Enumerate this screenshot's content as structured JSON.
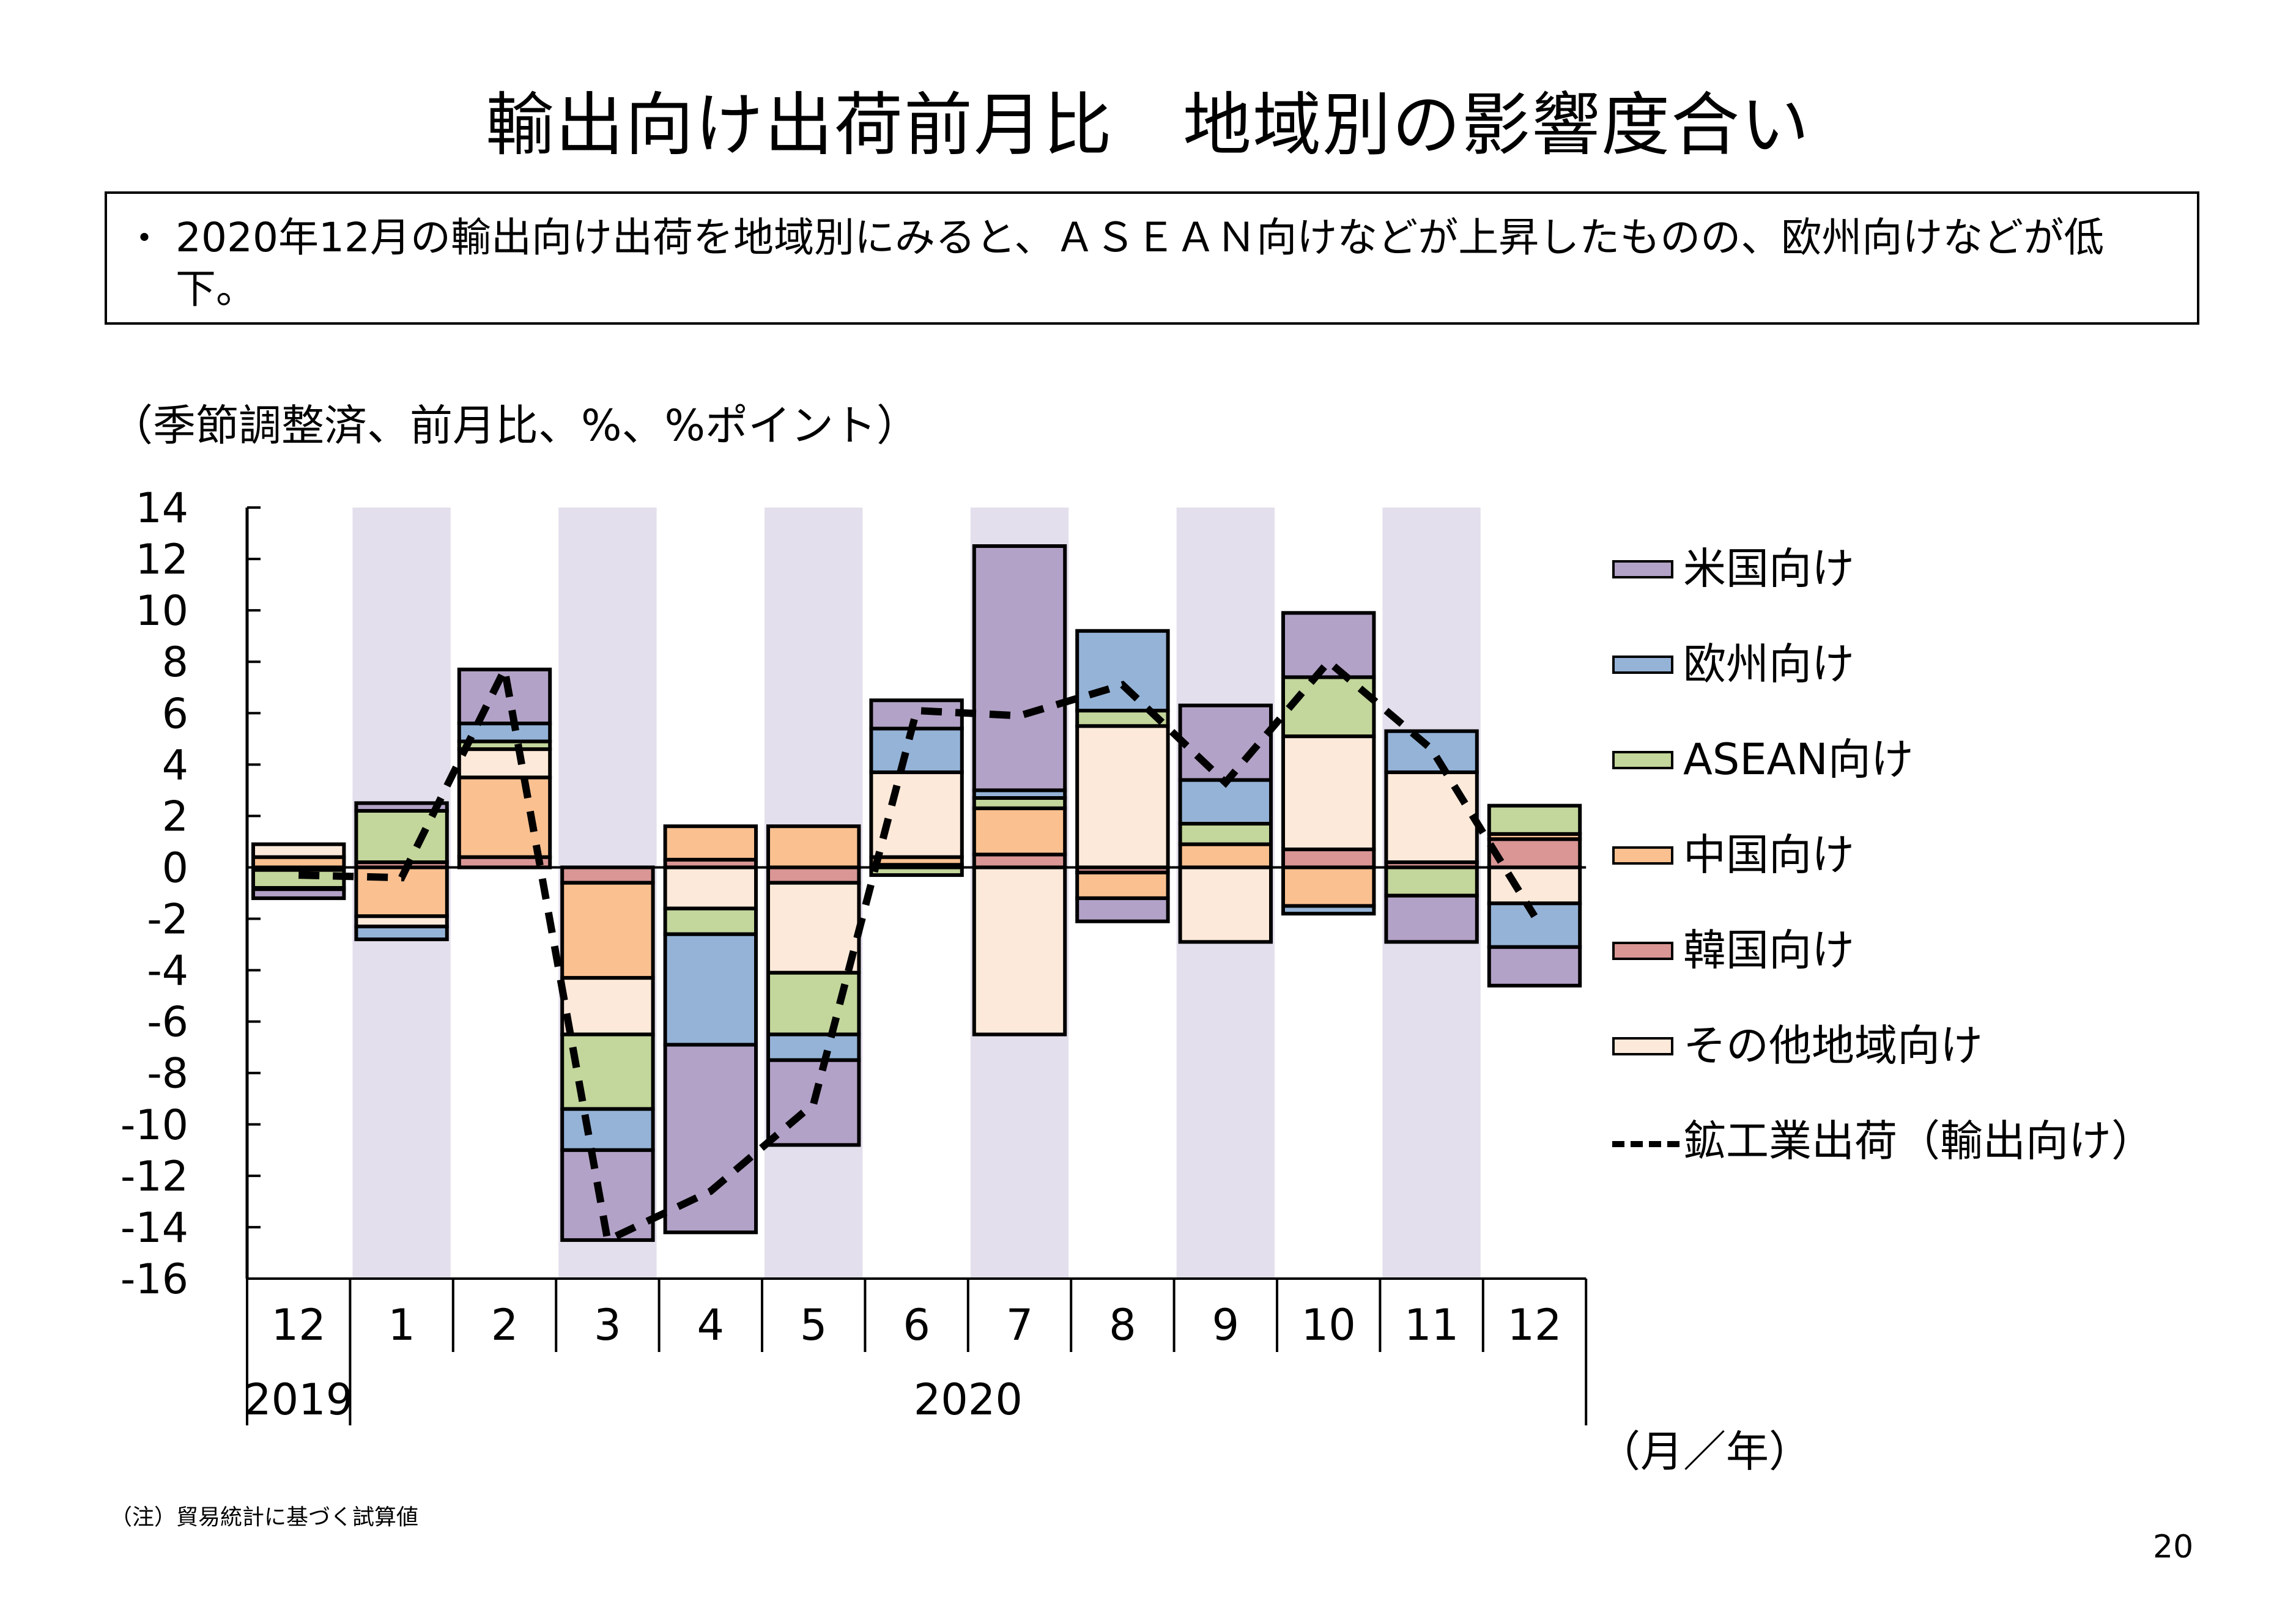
{
  "title": "輸出向け出荷前月比　地域別の影響度合い",
  "summary": {
    "bullet": "・",
    "text": "2020年12月の輸出向け出荷を地域別にみると、ＡＳＥＡＮ向けなどが上昇したものの、欧州向けなどが低下。"
  },
  "unit_note": "（季節調整済、前月比、%、%ポイント）",
  "axis_unit": "（月／年）",
  "footnote": "（注）貿易統計に基づく試算値",
  "page_number": "20",
  "chart_data": {
    "type": "bar",
    "stacked": true,
    "title": "輸出向け出荷前月比　地域別の影響度合い",
    "ylabel": "（季節調整済、前月比、%、%ポイント）",
    "xlabel": "（月／年）",
    "ylim": [
      -16,
      14
    ],
    "yticks": [
      14,
      12,
      10,
      8,
      6,
      4,
      2,
      0,
      -2,
      -4,
      -6,
      -8,
      -10,
      -12,
      -14,
      -16
    ],
    "categories": [
      "12",
      "1",
      "2",
      "3",
      "4",
      "5",
      "6",
      "7",
      "8",
      "9",
      "10",
      "11",
      "12"
    ],
    "year_labels": [
      {
        "label": "2019",
        "span": [
          0,
          0
        ]
      },
      {
        "label": "2020",
        "span": [
          1,
          12
        ]
      }
    ],
    "shaded_categories": [
      1,
      3,
      5,
      7,
      9,
      11
    ],
    "colors": {
      "us": "#b3a2c7",
      "eu": "#95b3d7",
      "asean": "#c3d69b",
      "china": "#fac090",
      "korea": "#d99694",
      "other": "#fde9d9",
      "shade": "#e4dfec"
    },
    "series": [
      {
        "key": "us",
        "name": "米国向け",
        "values": [
          -0.35,
          0.3,
          2.1,
          -3.5,
          -7.3,
          -3.3,
          1.1,
          9.5,
          -0.9,
          2.9,
          2.5,
          -1.8,
          -1.5
        ]
      },
      {
        "key": "eu",
        "name": "欧州向け",
        "values": [
          -0.05,
          -0.5,
          0.7,
          -1.6,
          -4.3,
          -1.0,
          1.7,
          0.3,
          3.1,
          1.7,
          -0.3,
          1.6,
          -1.7
        ]
      },
      {
        "key": "asean",
        "name": "ASEAN向け",
        "values": [
          -0.7,
          2.0,
          0.3,
          -2.9,
          -1.0,
          -2.4,
          -0.3,
          0.4,
          0.6,
          0.8,
          2.3,
          -1.1,
          1.1
        ]
      },
      {
        "key": "china",
        "name": "中国向け",
        "values": [
          0.4,
          -1.9,
          3.1,
          -3.7,
          1.3,
          1.6,
          0.3,
          1.8,
          -1.0,
          0.9,
          -1.5,
          0.0,
          0.2
        ]
      },
      {
        "key": "korea",
        "name": "韓国向け",
        "values": [
          -0.1,
          0.2,
          0.4,
          -0.6,
          0.3,
          -0.6,
          0.1,
          0.5,
          -0.2,
          0.0,
          0.7,
          0.2,
          1.1
        ]
      },
      {
        "key": "other",
        "name": "その他地域向け",
        "values": [
          0.5,
          -0.4,
          1.1,
          -2.2,
          -1.6,
          -3.5,
          3.3,
          -6.5,
          5.5,
          -2.9,
          4.4,
          3.5,
          -1.4
        ]
      }
    ],
    "stack_order": [
      "korea",
      "china",
      "other",
      "asean",
      "eu",
      "us"
    ],
    "line": {
      "name": "鉱工業出荷（輸出向け）",
      "values": [
        -0.3,
        -0.4,
        7.7,
        -14.5,
        -12.6,
        -9.2,
        6.1,
        5.9,
        7.1,
        3.3,
        8.0,
        4.6,
        -1.9
      ]
    },
    "legend_position": "right"
  }
}
